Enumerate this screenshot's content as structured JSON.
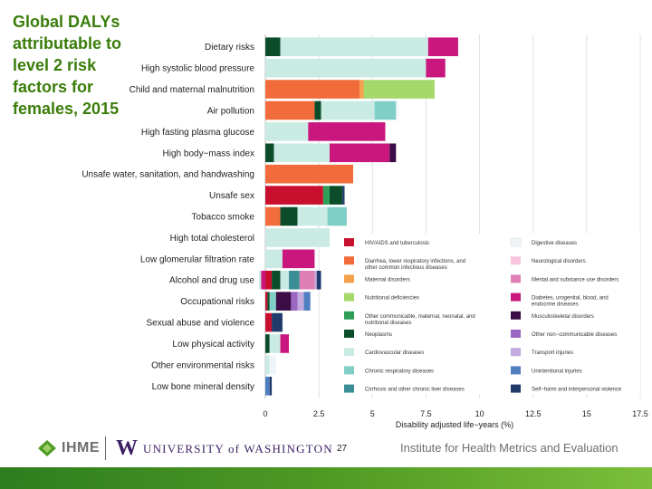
{
  "slide": {
    "title": "Global DALYs attributable to level 2 risk factors for females, 2015",
    "page_number": "27",
    "institute": "Institute for Health Metrics and Evaluation",
    "logo_ihme": "IHME",
    "logo_uw_mark": "W",
    "logo_uw_text": "UNIVERSITY of WASHINGTON",
    "band_color": "#4f9a24"
  },
  "chart_data": {
    "type": "bar",
    "orientation": "horizontal",
    "stacked": true,
    "title": "",
    "xlabel": "Disability adjusted life−years (%)",
    "ylabel": "",
    "xlim": [
      0,
      17.5
    ],
    "xticks": [
      "0",
      "2.5",
      "5",
      "7.5",
      "10",
      "12.5",
      "15",
      "17.5"
    ],
    "grid": true,
    "legend_position": "lower-right inside",
    "categories": [
      "Dietary risks",
      "High systolic blood pressure",
      "Child and maternal malnutrition",
      "Air pollution",
      "High fasting plasma glucose",
      "High body−mass index",
      "Unsafe water, sanitation, and handwashing",
      "Unsafe sex",
      "Tobacco smoke",
      "High total cholesterol",
      "Low glomerular filtration rate",
      "Alcohol and drug use",
      "Occupational risks",
      "Sexual abuse and violence",
      "Low physical activity",
      "Other environmental risks",
      "Low bone mineral density"
    ],
    "causes": [
      {
        "name": "HIV/AIDS and tuberculosis",
        "color": "#c8102e"
      },
      {
        "name": "Diarrhea, lower respiratory infections, and other common infectious diseases",
        "color": "#f26b3a"
      },
      {
        "name": "Maternal disorders",
        "color": "#f5a04a"
      },
      {
        "name": "Nutritional deficiencies",
        "color": "#a5d86a"
      },
      {
        "name": "Other communicable, maternal, neonatal, and nutritional diseases",
        "color": "#2e9e56"
      },
      {
        "name": "Neoplasms",
        "color": "#0b4d2a"
      },
      {
        "name": "Cardiovascular diseases",
        "color": "#c9ebe3"
      },
      {
        "name": "Chronic respiratory diseases",
        "color": "#7fcfc7"
      },
      {
        "name": "Cirrhosis and other chronic liver diseases",
        "color": "#3a8f96"
      },
      {
        "name": "Digestive diseases",
        "color": "#eef4f7"
      },
      {
        "name": "Neurological disorders",
        "color": "#f6c4dd"
      },
      {
        "name": "Mental and substance use disorders",
        "color": "#e07fb6"
      },
      {
        "name": "Diabetes, urogenital, blood, and endocrine diseases",
        "color": "#c9177e"
      },
      {
        "name": "Musculoskeletal disorders",
        "color": "#3b0c45"
      },
      {
        "name": "Other non−communicable diseases",
        "color": "#9a67c2"
      },
      {
        "name": "Transport injuries",
        "color": "#c3a9dc"
      },
      {
        "name": "Unintentional injuries",
        "color": "#4f7fc0"
      },
      {
        "name": "Self−harm and interpersonal violence",
        "color": "#1f3a6b"
      }
    ],
    "series": [
      {
        "name": "HIV/AIDS and tuberculosis",
        "values": [
          0,
          0,
          0,
          0,
          0,
          0,
          0,
          2.7,
          0,
          0,
          0,
          0.3,
          0.1,
          0.3,
          0,
          0,
          0
        ]
      },
      {
        "name": "Diarrhea, lower respiratory infections, and other common infectious diseases",
        "values": [
          0,
          0,
          4.4,
          2.3,
          0,
          0,
          4.1,
          0,
          0.7,
          0,
          0,
          0,
          0,
          0,
          0,
          0,
          0
        ]
      },
      {
        "name": "Maternal disorders",
        "values": [
          0,
          0,
          0.2,
          0,
          0,
          0,
          0,
          0,
          0,
          0,
          0,
          0,
          0,
          0,
          0,
          0,
          0
        ]
      },
      {
        "name": "Nutritional deficiencies",
        "values": [
          0,
          0,
          3.3,
          0,
          0,
          0,
          0,
          0,
          0,
          0,
          0,
          0,
          0,
          0,
          0,
          0,
          0
        ]
      },
      {
        "name": "Other communicable, maternal, neonatal, and nutritional diseases",
        "values": [
          0,
          0,
          0,
          0,
          0,
          0,
          0,
          0.3,
          0,
          0,
          0,
          0,
          0,
          0,
          0,
          0,
          0
        ]
      },
      {
        "name": "Neoplasms",
        "values": [
          0.7,
          0,
          0,
          0.3,
          0,
          0.4,
          0,
          0.6,
          0.8,
          0,
          0,
          0.4,
          0.1,
          0,
          0.2,
          0,
          0
        ]
      },
      {
        "name": "Cardiovascular diseases",
        "values": [
          6.9,
          7.5,
          0,
          2.5,
          2.0,
          2.6,
          0,
          0,
          1.4,
          3.0,
          0.8,
          0.4,
          0,
          0,
          0.5,
          0.2,
          0
        ]
      },
      {
        "name": "Chronic respiratory diseases",
        "values": [
          0,
          0,
          0,
          1.0,
          0,
          0,
          0,
          0,
          0.9,
          0,
          0,
          0,
          0.3,
          0,
          0,
          0,
          0
        ]
      },
      {
        "name": "Cirrhosis and other chronic liver diseases",
        "values": [
          0,
          0,
          0,
          0,
          0,
          0,
          0,
          0,
          0,
          0,
          0,
          0.5,
          0,
          0,
          0,
          0,
          0
        ]
      },
      {
        "name": "Digestive diseases",
        "values": [
          0,
          0,
          0,
          0.1,
          0,
          0,
          0,
          0,
          0,
          0,
          0,
          0,
          0,
          0,
          0,
          0.3,
          0
        ]
      },
      {
        "name": "Neurological disorders",
        "values": [
          0,
          0,
          0,
          0,
          0,
          0,
          0,
          0,
          0,
          0,
          0,
          0,
          0,
          0,
          0,
          0,
          0
        ]
      },
      {
        "name": "Mental and substance use disorders",
        "values": [
          0,
          0,
          0,
          0,
          0,
          0,
          0,
          0,
          0,
          0,
          0,
          0.7,
          0,
          0,
          0,
          0,
          0
        ]
      },
      {
        "name": "Diabetes, urogenital, blood, and endocrine diseases",
        "values": [
          1.4,
          0.9,
          0,
          0,
          3.6,
          2.8,
          0,
          0,
          0,
          0,
          1.5,
          0,
          0,
          0,
          0.4,
          0,
          0
        ]
      },
      {
        "name": "Musculoskeletal disorders",
        "values": [
          0,
          0,
          0,
          0,
          0,
          0.3,
          0,
          0,
          0,
          0,
          0,
          0,
          0.7,
          0,
          0,
          0,
          0
        ]
      },
      {
        "name": "Other non−communicable diseases",
        "values": [
          0,
          0,
          0,
          0,
          0,
          0,
          0,
          0,
          0,
          0,
          0,
          0,
          0.3,
          0,
          0,
          0,
          0
        ]
      },
      {
        "name": "Transport injuries",
        "values": [
          0,
          0,
          0,
          0,
          0,
          0,
          0,
          0,
          0,
          0,
          0,
          0.1,
          0.3,
          0,
          0,
          0,
          0
        ]
      },
      {
        "name": "Unintentional injuries",
        "values": [
          0,
          0,
          0,
          0,
          0,
          0,
          0,
          0,
          0,
          0,
          0,
          0,
          0.3,
          0,
          0,
          0,
          0.2
        ]
      },
      {
        "name": "Self−harm and interpersonal violence",
        "values": [
          0,
          0,
          0,
          0,
          0,
          0,
          0,
          0.1,
          0,
          0,
          0,
          0.2,
          0,
          0.5,
          0,
          0,
          0.1
        ]
      }
    ],
    "negative_stub": {
      "category": "Alcohol and drug use",
      "values": [
        {
          "cause": "Diabetes, urogenital, blood, and endocrine diseases",
          "value": -0.2
        },
        {
          "cause": "Cardiovascular diseases",
          "value": -0.1
        }
      ]
    }
  }
}
